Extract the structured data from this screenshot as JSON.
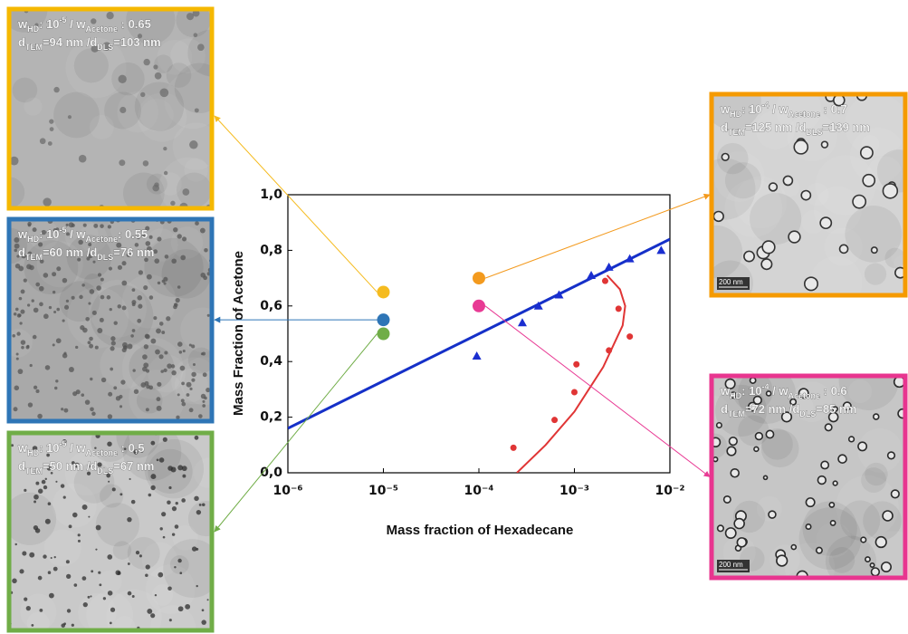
{
  "chart_data": {
    "type": "scatter",
    "xlabel": "Mass fraction of Hexadecane",
    "ylabel": "Mass Fraction of Acetone",
    "xscale": "log",
    "xlim": [
      1e-06,
      0.01
    ],
    "xticks": [
      {
        "value": 1e-06,
        "label": "10⁻⁶"
      },
      {
        "value": 1e-05,
        "label": "10⁻⁵"
      },
      {
        "value": 0.0001,
        "label": "10⁻⁴"
      },
      {
        "value": 0.001,
        "label": "10⁻³"
      },
      {
        "value": 0.01,
        "label": "10⁻²"
      }
    ],
    "ylim": [
      0,
      1
    ],
    "yticks": [
      {
        "value": 0,
        "label": "0,0"
      },
      {
        "value": 0.2,
        "label": "0,2"
      },
      {
        "value": 0.4,
        "label": "0,4"
      },
      {
        "value": 0.6,
        "label": "0,6"
      },
      {
        "value": 0.8,
        "label": "0,8"
      },
      {
        "value": 1,
        "label": "1,0"
      }
    ],
    "series": [
      {
        "kind": "line",
        "color": "#1530c8",
        "x": [
          1e-06,
          0.01
        ],
        "values": [
          0.16,
          0.84
        ]
      },
      {
        "kind": "triangle",
        "color": "#1a2ed0",
        "x": [
          9.5e-05,
          0.000285,
          0.00042,
          0.00069,
          0.0015,
          0.0023,
          0.0038,
          0.0081
        ],
        "values": [
          0.42,
          0.54,
          0.6,
          0.64,
          0.71,
          0.74,
          0.77,
          0.8
        ]
      },
      {
        "kind": "line",
        "color": "#e03535",
        "x": [
          0.00025,
          0.0005,
          0.001,
          0.002,
          0.0032,
          0.0034,
          0.003,
          0.0022
        ],
        "values": [
          0,
          0.1,
          0.22,
          0.38,
          0.53,
          0.6,
          0.66,
          0.71
        ]
      },
      {
        "kind": "dot",
        "color": "#e03535",
        "x": [
          0.00023,
          0.00062,
          0.001,
          0.00105,
          0.0023,
          0.0038,
          0.0029,
          0.0021
        ],
        "values": [
          0.09,
          0.19,
          0.29,
          0.39,
          0.44,
          0.49,
          0.59,
          0.69
        ]
      },
      {
        "kind": "circle",
        "colors": [
          "#f5bb1f",
          "#2e75b6",
          "#70ad47",
          "#f39a1e",
          "#e83a94"
        ],
        "x": [
          1e-05,
          1e-05,
          1e-05,
          0.0001,
          0.0001
        ],
        "values": [
          0.65,
          0.55,
          0.5,
          0.7,
          0.6
        ]
      }
    ]
  },
  "panels": [
    {
      "color": "#f5b800",
      "caption": [
        [
          {
            "text": "w"
          },
          {
            "text": "HD",
            "style": "sub"
          },
          {
            "text": ": 10"
          },
          {
            "text": "-5",
            "style": "sup"
          },
          {
            "text": " / w"
          },
          {
            "text": "Acetone",
            "style": "sub"
          },
          {
            "text": " : 0.65"
          }
        ],
        [
          {
            "text": "d"
          },
          {
            "text": "TEM",
            "style": "sub"
          },
          {
            "text": "=94 nm /d"
          },
          {
            "text": "DLS",
            "style": "sub"
          },
          {
            "text": "=103 nm"
          }
        ]
      ]
    },
    {
      "color": "#2e75b6",
      "caption": [
        [
          {
            "text": "w"
          },
          {
            "text": "HD",
            "style": "sub"
          },
          {
            "text": ": 10"
          },
          {
            "text": "-5",
            "style": "sup"
          },
          {
            "text": " / w"
          },
          {
            "text": "Acetone",
            "style": "sub"
          },
          {
            "text": ": 0.55"
          }
        ],
        [
          {
            "text": "d"
          },
          {
            "text": "TEM",
            "style": "sub"
          },
          {
            "text": "=60 nm /d"
          },
          {
            "text": "DLS",
            "style": "sub"
          },
          {
            "text": "=76 nm"
          }
        ]
      ]
    },
    {
      "color": "#70ad47",
      "caption": [
        [
          {
            "text": "w"
          },
          {
            "text": "HD",
            "style": "sub"
          },
          {
            "text": ": 10"
          },
          {
            "text": "-5",
            "style": "sup"
          },
          {
            "text": " / w"
          },
          {
            "text": "Acetone",
            "style": "sub"
          },
          {
            "text": " : 0,5"
          }
        ],
        [
          {
            "text": "d"
          },
          {
            "text": "TEM",
            "style": "sub"
          },
          {
            "text": "=50 nm /d"
          },
          {
            "text": "DLS",
            "style": "sub"
          },
          {
            "text": "=67 nm"
          }
        ]
      ]
    },
    {
      "color": "#f59a00",
      "caption": [
        [
          {
            "text": "w"
          },
          {
            "text": "HD",
            "style": "sub"
          },
          {
            "text": ": 10"
          },
          {
            "text": "-4",
            "style": "sup"
          },
          {
            "text": " / w"
          },
          {
            "text": "Acetone",
            "style": "sub"
          },
          {
            "text": " : 0.7"
          }
        ],
        [
          {
            "text": "d"
          },
          {
            "text": "TEM",
            "style": "sub"
          },
          {
            "text": "=125 nm /d"
          },
          {
            "text": "DLS",
            "style": "sub"
          },
          {
            "text": "=139 nm"
          }
        ]
      ],
      "scale_bar": "200 nm"
    },
    {
      "color": "#e8358f",
      "caption": [
        [
          {
            "text": "w"
          },
          {
            "text": "HD",
            "style": "sub"
          },
          {
            "text": ": 10"
          },
          {
            "text": "-4",
            "style": "sup"
          },
          {
            "text": " / w"
          },
          {
            "text": "Acetone",
            "style": "sub"
          },
          {
            "text": " : 0.6"
          }
        ],
        [
          {
            "text": "d"
          },
          {
            "text": "TEM",
            "style": "sub"
          },
          {
            "text": "=72 nm /d"
          },
          {
            "text": "DLS",
            "style": "sub"
          },
          {
            "text": "=85 nm"
          }
        ]
      ],
      "scale_bar": "200 nm"
    }
  ]
}
